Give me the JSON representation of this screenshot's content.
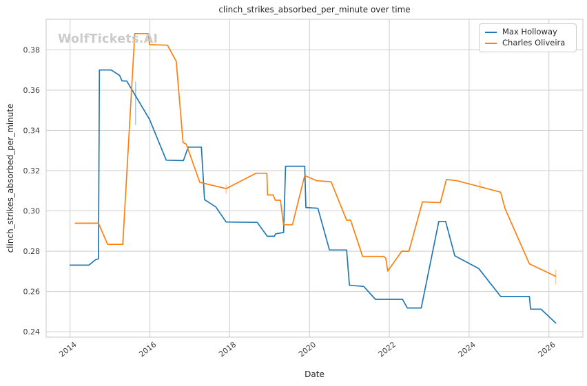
{
  "chart_data": {
    "type": "line",
    "title": "clinch_strikes_absorbed_per_minute over time",
    "xlabel": "Date",
    "ylabel": "clinch_strikes_absorbed_per_minute",
    "watermark": "WolfTickets.AI",
    "grid": true,
    "legend_position": "top-right",
    "xlim": [
      2013.4,
      2026.85
    ],
    "ylim": [
      0.2373,
      0.3952
    ],
    "x_ticks": [
      2014,
      2016,
      2018,
      2020,
      2022,
      2024,
      2026
    ],
    "y_ticks": [
      0.24,
      0.26,
      0.28,
      0.3,
      0.32,
      0.34,
      0.36,
      0.38
    ],
    "colors": {
      "grid": "#cccccc",
      "spine": "#c7c7c7",
      "tick_text": "#3d3d3d",
      "title_text": "#262626"
    },
    "legend": {
      "entries": [
        {
          "label": "Max Holloway",
          "color": "#1f77b4"
        },
        {
          "label": "Charles Oliveira",
          "color": "#ff7f0e"
        }
      ]
    },
    "series": [
      {
        "name": "Max Holloway",
        "color": "#1f77b4",
        "points": [
          [
            2014.0,
            0.2731
          ],
          [
            2014.47,
            0.2731
          ],
          [
            2014.64,
            0.2758
          ],
          [
            2014.71,
            0.2762
          ],
          [
            2014.735,
            0.37
          ],
          [
            2015.03,
            0.37
          ],
          [
            2015.24,
            0.3673
          ],
          [
            2015.3,
            0.3646
          ],
          [
            2015.42,
            0.3645
          ],
          [
            2015.99,
            0.3455
          ],
          [
            2016.41,
            0.3252
          ],
          [
            2016.84,
            0.325
          ],
          [
            2016.96,
            0.3317
          ],
          [
            2017.29,
            0.3317
          ],
          [
            2017.37,
            0.3056
          ],
          [
            2017.65,
            0.302
          ],
          [
            2017.91,
            0.2945
          ],
          [
            2018.69,
            0.2943
          ],
          [
            2018.94,
            0.2874
          ],
          [
            2019.12,
            0.2874
          ],
          [
            2019.15,
            0.2886
          ],
          [
            2019.35,
            0.2893
          ],
          [
            2019.4,
            0.3222
          ],
          [
            2019.88,
            0.3222
          ],
          [
            2019.91,
            0.3017
          ],
          [
            2020.21,
            0.3013
          ],
          [
            2020.5,
            0.2806
          ],
          [
            2020.93,
            0.2806
          ],
          [
            2021.0,
            0.2631
          ],
          [
            2021.36,
            0.2625
          ],
          [
            2021.65,
            0.2561
          ],
          [
            2022.33,
            0.2561
          ],
          [
            2022.45,
            0.2518
          ],
          [
            2022.8,
            0.2518
          ],
          [
            2023.24,
            0.2948
          ],
          [
            2023.41,
            0.2948
          ],
          [
            2023.64,
            0.2777
          ],
          [
            2024.24,
            0.2714
          ],
          [
            2024.79,
            0.2575
          ],
          [
            2025.51,
            0.2575
          ],
          [
            2025.54,
            0.2512
          ],
          [
            2025.8,
            0.2512
          ],
          [
            2026.17,
            0.2443
          ]
        ]
      },
      {
        "name": "Charles Oliveira",
        "color": "#ff7f0e",
        "points": [
          [
            2014.13,
            0.2939
          ],
          [
            2014.71,
            0.2939
          ],
          [
            2014.94,
            0.2834
          ],
          [
            2015.32,
            0.2834
          ],
          [
            2015.62,
            0.3881
          ],
          [
            2015.96,
            0.3881
          ],
          [
            2015.99,
            0.3826
          ],
          [
            2016.44,
            0.3823
          ],
          [
            2016.66,
            0.3743
          ],
          [
            2016.83,
            0.334
          ],
          [
            2016.91,
            0.3332
          ],
          [
            2017.25,
            0.3142
          ],
          [
            2017.91,
            0.3111
          ],
          [
            2018.66,
            0.3187
          ],
          [
            2018.93,
            0.3187
          ],
          [
            2018.95,
            0.3079
          ],
          [
            2019.09,
            0.3079
          ],
          [
            2019.14,
            0.3053
          ],
          [
            2019.27,
            0.3053
          ],
          [
            2019.35,
            0.2931
          ],
          [
            2019.57,
            0.2931
          ],
          [
            2019.88,
            0.3176
          ],
          [
            2020.18,
            0.315
          ],
          [
            2020.54,
            0.3145
          ],
          [
            2020.93,
            0.2954
          ],
          [
            2021.03,
            0.2954
          ],
          [
            2021.33,
            0.2774
          ],
          [
            2021.86,
            0.2774
          ],
          [
            2021.91,
            0.2766
          ],
          [
            2021.96,
            0.2701
          ],
          [
            2022.31,
            0.28
          ],
          [
            2022.49,
            0.28
          ],
          [
            2022.83,
            0.3045
          ],
          [
            2023.28,
            0.3041
          ],
          [
            2023.43,
            0.3156
          ],
          [
            2023.7,
            0.315
          ],
          [
            2024.79,
            0.3093
          ],
          [
            2024.9,
            0.3011
          ],
          [
            2025.51,
            0.2737
          ],
          [
            2026.17,
            0.2675
          ]
        ]
      }
    ],
    "event_markers": [
      {
        "series": "Max Holloway",
        "x": 2015.64,
        "y_low": 0.3427,
        "y_high": 0.3643,
        "color": "#1f77b4"
      },
      {
        "series": "Charles Oliveira",
        "x": 2017.91,
        "y_low": 0.3085,
        "y_high": 0.3131,
        "color": "#ff7f0e"
      },
      {
        "series": "Charles Oliveira",
        "x": 2024.27,
        "y_low": 0.3101,
        "y_high": 0.3149,
        "color": "#ff7f0e"
      },
      {
        "series": "Charles Oliveira",
        "x": 2026.17,
        "y_low": 0.2635,
        "y_high": 0.2709,
        "color": "#ff7f0e"
      }
    ]
  }
}
